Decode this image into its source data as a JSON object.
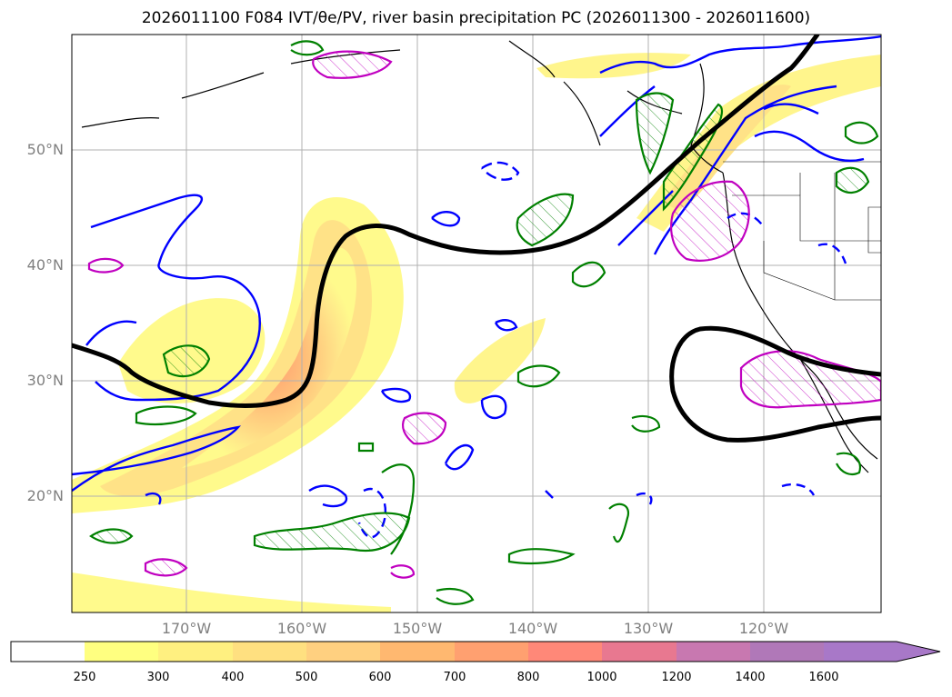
{
  "title": "2026011100 F084 IVT/θe/PV, river basin precipitation PC (2026011300 - 2026011600)",
  "map": {
    "lat_labels": [
      "50°N",
      "40°N",
      "30°N",
      "20°N"
    ],
    "lon_labels": [
      "170°W",
      "160°W",
      "150°W",
      "140°W",
      "130°W",
      "120°W"
    ]
  },
  "colorbar": {
    "levels": [
      "250",
      "300",
      "400",
      "500",
      "600",
      "700",
      "800",
      "1000",
      "1200",
      "1400",
      "1600"
    ],
    "colors": [
      "#ffffff",
      "#ffff80",
      "#fff080",
      "#ffe080",
      "#ffd080",
      "#ffb870",
      "#ffa070",
      "#ff8878",
      "#e87890",
      "#c878b0",
      "#a878c8"
    ]
  },
  "colors": {
    "ivt_fill_low": "#fffa8c",
    "ivt_fill_mid": "#ffd27a",
    "ivt_fill_high": "#ffa070",
    "pv_contour": "#000000",
    "theta_e_blue": "#0000ff",
    "precip_green": "#008000",
    "precip_magenta": "#c000c0",
    "coastline": "#000000",
    "grid": "#b0b0b0"
  }
}
